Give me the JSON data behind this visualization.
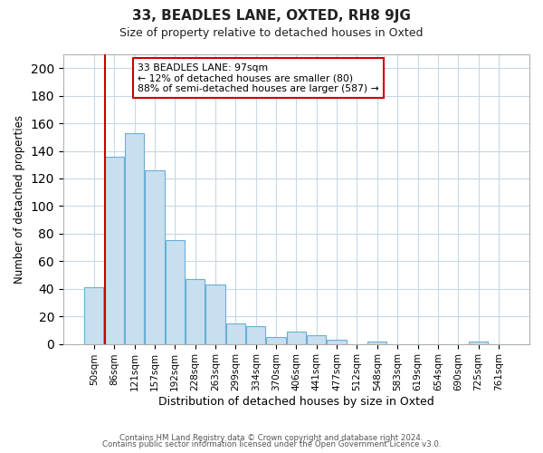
{
  "title": "33, BEADLES LANE, OXTED, RH8 9JG",
  "subtitle": "Size of property relative to detached houses in Oxted",
  "xlabel": "Distribution of detached houses by size in Oxted",
  "ylabel": "Number of detached properties",
  "bar_labels": [
    "50sqm",
    "86sqm",
    "121sqm",
    "157sqm",
    "192sqm",
    "228sqm",
    "263sqm",
    "299sqm",
    "334sqm",
    "370sqm",
    "406sqm",
    "441sqm",
    "477sqm",
    "512sqm",
    "548sqm",
    "583sqm",
    "619sqm",
    "654sqm",
    "690sqm",
    "725sqm",
    "761sqm"
  ],
  "bar_values": [
    41,
    136,
    153,
    126,
    75,
    47,
    43,
    15,
    13,
    5,
    9,
    6,
    3,
    0,
    2,
    0,
    0,
    0,
    0,
    2,
    0
  ],
  "bar_color": "#c8dff0",
  "bar_edge_color": "#6baed6",
  "vline_color": "#cc0000",
  "vline_x_index": 1,
  "ylim": [
    0,
    210
  ],
  "yticks": [
    0,
    20,
    40,
    60,
    80,
    100,
    120,
    140,
    160,
    180,
    200
  ],
  "annotation_title": "33 BEADLES LANE: 97sqm",
  "annotation_line1": "← 12% of detached houses are smaller (80)",
  "annotation_line2": "88% of semi-detached houses are larger (587) →",
  "footer_line1": "Contains HM Land Registry data © Crown copyright and database right 2024.",
  "footer_line2": "Contains public sector information licensed under the Open Government Licence v3.0.",
  "background_color": "#ffffff",
  "grid_color": "#c8d8e8"
}
